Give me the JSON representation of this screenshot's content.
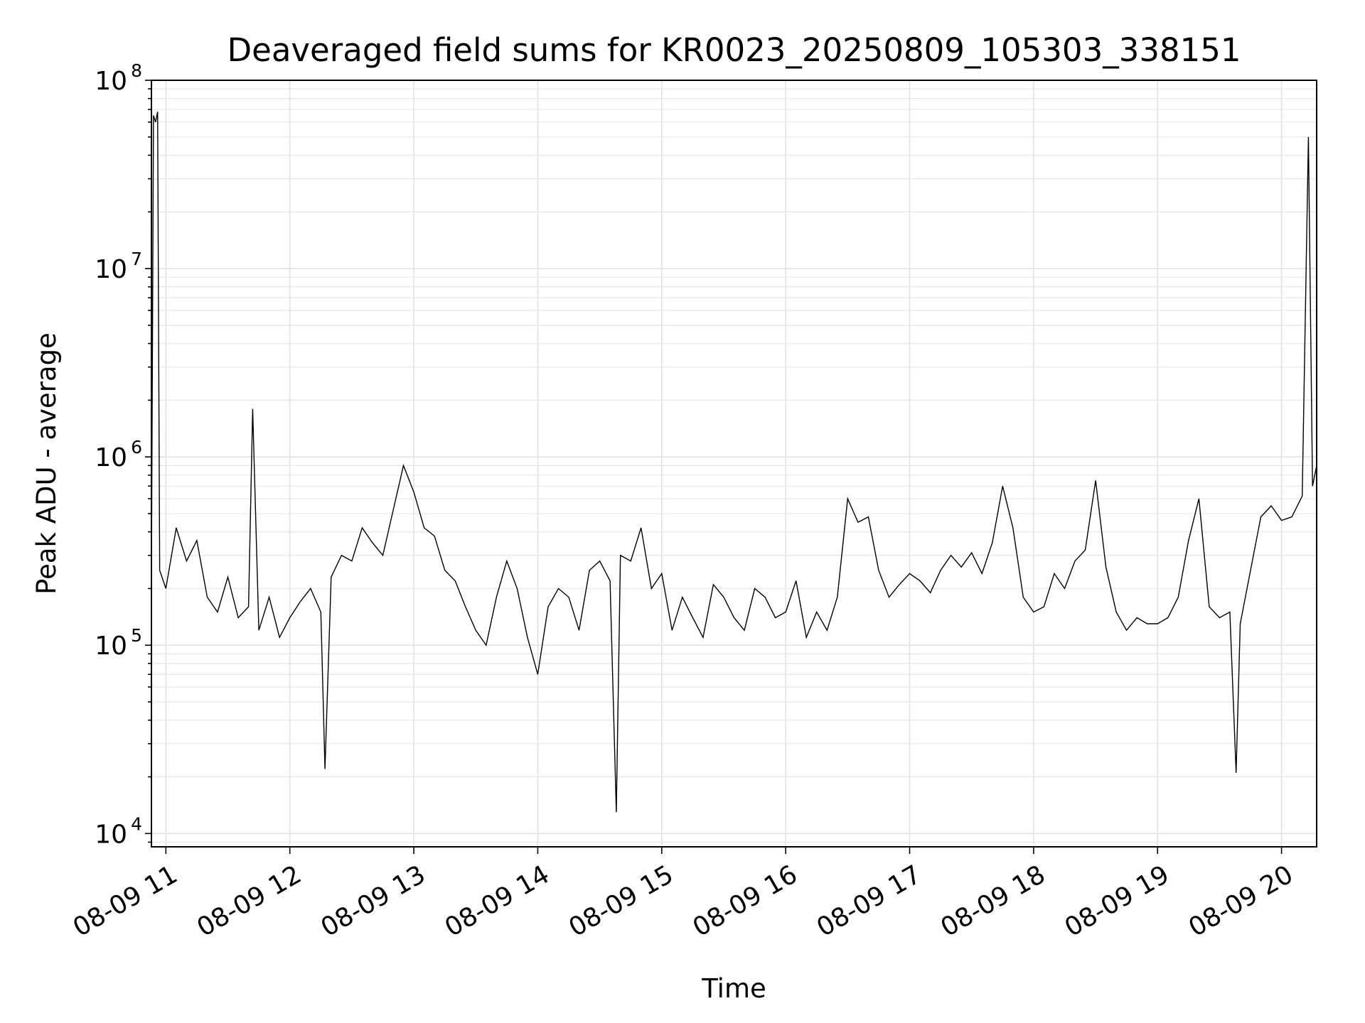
{
  "chart_data": {
    "type": "line",
    "title": "Deaveraged field sums for KR0023_20250809_105303_338151",
    "xlabel": "Time",
    "ylabel": "Peak ADU - average",
    "yscale": "log",
    "ylim": [
      8500,
      100000000
    ],
    "xlim": [
      "2025-08-09 10:53",
      "2025-08-09 20:17"
    ],
    "grid": true,
    "legend": "none",
    "line_color": "#000000",
    "x_ticks": [
      {
        "value": "2025-08-09 11:00",
        "label": "08-09 11"
      },
      {
        "value": "2025-08-09 12:00",
        "label": "08-09 12"
      },
      {
        "value": "2025-08-09 13:00",
        "label": "08-09 13"
      },
      {
        "value": "2025-08-09 14:00",
        "label": "08-09 14"
      },
      {
        "value": "2025-08-09 15:00",
        "label": "08-09 15"
      },
      {
        "value": "2025-08-09 16:00",
        "label": "08-09 16"
      },
      {
        "value": "2025-08-09 17:00",
        "label": "08-09 17"
      },
      {
        "value": "2025-08-09 18:00",
        "label": "08-09 18"
      },
      {
        "value": "2025-08-09 19:00",
        "label": "08-09 19"
      },
      {
        "value": "2025-08-09 20:00",
        "label": "08-09 20"
      }
    ],
    "y_ticks": [
      {
        "value": 10000,
        "base": "10",
        "exp": "4"
      },
      {
        "value": 100000,
        "base": "10",
        "exp": "5"
      },
      {
        "value": 1000000,
        "base": "10",
        "exp": "6"
      },
      {
        "value": 10000000,
        "base": "10",
        "exp": "7"
      },
      {
        "value": 100000000,
        "base": "10",
        "exp": "8"
      }
    ],
    "series": [
      {
        "x": [
          "2025-08-09 10:53",
          "2025-08-09 10:54",
          "2025-08-09 10:55",
          "2025-08-09 10:56",
          "2025-08-09 10:57",
          "2025-08-09 11:00",
          "2025-08-09 11:05",
          "2025-08-09 11:10",
          "2025-08-09 11:15",
          "2025-08-09 11:20",
          "2025-08-09 11:25",
          "2025-08-09 11:30",
          "2025-08-09 11:35",
          "2025-08-09 11:40",
          "2025-08-09 11:42",
          "2025-08-09 11:45",
          "2025-08-09 11:50",
          "2025-08-09 11:55",
          "2025-08-09 12:00",
          "2025-08-09 12:05",
          "2025-08-09 12:10",
          "2025-08-09 12:15",
          "2025-08-09 12:17",
          "2025-08-09 12:20",
          "2025-08-09 12:25",
          "2025-08-09 12:30",
          "2025-08-09 12:35",
          "2025-08-09 12:40",
          "2025-08-09 12:45",
          "2025-08-09 12:50",
          "2025-08-09 12:55",
          "2025-08-09 13:00",
          "2025-08-09 13:05",
          "2025-08-09 13:10",
          "2025-08-09 13:15",
          "2025-08-09 13:20",
          "2025-08-09 13:25",
          "2025-08-09 13:30",
          "2025-08-09 13:35",
          "2025-08-09 13:40",
          "2025-08-09 13:45",
          "2025-08-09 13:50",
          "2025-08-09 13:55",
          "2025-08-09 14:00",
          "2025-08-09 14:05",
          "2025-08-09 14:10",
          "2025-08-09 14:15",
          "2025-08-09 14:20",
          "2025-08-09 14:25",
          "2025-08-09 14:30",
          "2025-08-09 14:35",
          "2025-08-09 14:38",
          "2025-08-09 14:40",
          "2025-08-09 14:45",
          "2025-08-09 14:50",
          "2025-08-09 14:55",
          "2025-08-09 15:00",
          "2025-08-09 15:05",
          "2025-08-09 15:10",
          "2025-08-09 15:15",
          "2025-08-09 15:20",
          "2025-08-09 15:25",
          "2025-08-09 15:30",
          "2025-08-09 15:35",
          "2025-08-09 15:40",
          "2025-08-09 15:45",
          "2025-08-09 15:50",
          "2025-08-09 15:55",
          "2025-08-09 16:00",
          "2025-08-09 16:05",
          "2025-08-09 16:10",
          "2025-08-09 16:15",
          "2025-08-09 16:20",
          "2025-08-09 16:25",
          "2025-08-09 16:30",
          "2025-08-09 16:35",
          "2025-08-09 16:40",
          "2025-08-09 16:45",
          "2025-08-09 16:50",
          "2025-08-09 16:55",
          "2025-08-09 17:00",
          "2025-08-09 17:05",
          "2025-08-09 17:10",
          "2025-08-09 17:15",
          "2025-08-09 17:20",
          "2025-08-09 17:25",
          "2025-08-09 17:30",
          "2025-08-09 17:35",
          "2025-08-09 17:40",
          "2025-08-09 17:45",
          "2025-08-09 17:50",
          "2025-08-09 17:55",
          "2025-08-09 18:00",
          "2025-08-09 18:05",
          "2025-08-09 18:10",
          "2025-08-09 18:15",
          "2025-08-09 18:20",
          "2025-08-09 18:25",
          "2025-08-09 18:30",
          "2025-08-09 18:35",
          "2025-08-09 18:40",
          "2025-08-09 18:45",
          "2025-08-09 18:50",
          "2025-08-09 18:55",
          "2025-08-09 19:00",
          "2025-08-09 19:05",
          "2025-08-09 19:10",
          "2025-08-09 19:15",
          "2025-08-09 19:20",
          "2025-08-09 19:25",
          "2025-08-09 19:30",
          "2025-08-09 19:35",
          "2025-08-09 19:38",
          "2025-08-09 19:40",
          "2025-08-09 19:45",
          "2025-08-09 19:50",
          "2025-08-09 19:55",
          "2025-08-09 20:00",
          "2025-08-09 20:05",
          "2025-08-09 20:10",
          "2025-08-09 20:13",
          "2025-08-09 20:15",
          "2025-08-09 20:17"
        ],
        "y": [
          230000,
          65000000,
          60000000,
          68000000,
          250000,
          200000,
          420000,
          280000,
          360000,
          180000,
          150000,
          230000,
          140000,
          160000,
          1800000,
          120000,
          180000,
          110000,
          140000,
          170000,
          200000,
          150000,
          22000,
          230000,
          300000,
          280000,
          420000,
          350000,
          300000,
          520000,
          900000,
          650000,
          420000,
          380000,
          250000,
          220000,
          160000,
          120000,
          100000,
          180000,
          280000,
          200000,
          110000,
          70000,
          160000,
          200000,
          180000,
          120000,
          250000,
          280000,
          220000,
          13000,
          300000,
          280000,
          420000,
          200000,
          240000,
          120000,
          180000,
          140000,
          110000,
          210000,
          180000,
          140000,
          120000,
          200000,
          180000,
          140000,
          150000,
          220000,
          110000,
          150000,
          120000,
          180000,
          600000,
          450000,
          480000,
          250000,
          180000,
          210000,
          240000,
          220000,
          190000,
          250000,
          300000,
          260000,
          310000,
          240000,
          350000,
          700000,
          420000,
          180000,
          150000,
          160000,
          240000,
          200000,
          280000,
          320000,
          750000,
          260000,
          150000,
          120000,
          140000,
          130000,
          130000,
          140000,
          180000,
          360000,
          600000,
          160000,
          140000,
          150000,
          21000,
          130000,
          250000,
          480000,
          550000,
          460000,
          480000,
          620000,
          50000000,
          700000,
          900000
        ]
      }
    ]
  }
}
